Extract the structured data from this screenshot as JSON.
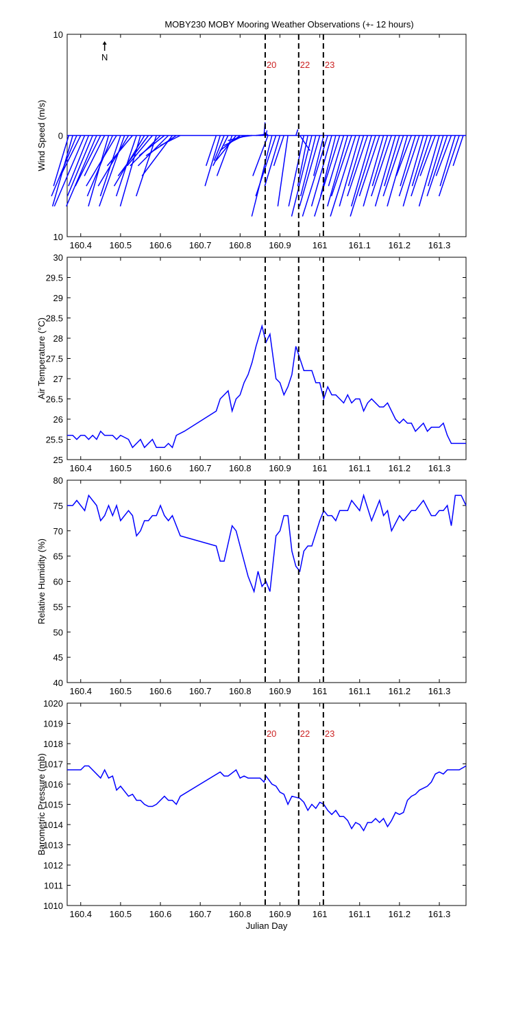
{
  "chart_data": [
    {
      "type": "feather",
      "title": "MOBY230 MOBY Mooring Weather Observations (+- 12 hours)",
      "ylabel": "Wind Speed (m/s)",
      "annotation": "N",
      "annotation_x": 160.46,
      "color": "#0000ff",
      "xlim": [
        160.366,
        161.367
      ],
      "xticks": [
        160.4,
        160.5,
        160.6,
        160.7,
        160.8,
        160.9,
        161,
        161.1,
        161.2,
        161.3
      ],
      "ylim": [
        -10,
        10
      ],
      "yticks": [
        {
          "value": -10,
          "label": "10"
        },
        0,
        10
      ],
      "vlines": [
        160.863,
        160.947,
        161.009
      ],
      "vline_labels": [
        "20",
        "22",
        "23"
      ],
      "vline_color": "#000000",
      "vline_label_color": "#cc2222",
      "x": [
        160.37,
        160.38,
        160.39,
        160.4,
        160.41,
        160.42,
        160.43,
        160.44,
        160.45,
        160.46,
        160.47,
        160.48,
        160.49,
        160.5,
        160.51,
        160.52,
        160.53,
        160.54,
        160.55,
        160.56,
        160.57,
        160.58,
        160.59,
        160.6,
        160.61,
        160.62,
        160.63,
        160.64,
        160.65,
        160.74,
        160.75,
        160.76,
        160.77,
        160.78,
        160.79,
        160.8,
        160.81,
        160.82,
        160.83,
        160.84,
        160.85,
        160.86,
        160.865,
        160.87,
        160.88,
        160.89,
        160.9,
        160.91,
        160.92,
        160.94,
        160.95,
        160.96,
        160.97,
        160.98,
        160.99,
        161.0,
        161.01,
        161.02,
        161.03,
        161.04,
        161.05,
        161.06,
        161.07,
        161.08,
        161.09,
        161.1,
        161.11,
        161.12,
        161.13,
        161.14,
        161.15,
        161.16,
        161.17,
        161.18,
        161.19,
        161.2,
        161.21,
        161.22,
        161.23,
        161.24,
        161.25,
        161.26,
        161.27,
        161.28,
        161.29,
        161.3,
        161.31,
        161.32,
        161.33,
        161.34,
        161.35,
        161.36
      ],
      "u": [
        -1.5,
        -2,
        -2.5,
        -2,
        -3,
        -2,
        -2.5,
        -3,
        -2.5,
        -2,
        -2,
        -2.5,
        -3,
        -2,
        -2.5,
        -3,
        -2.5,
        -2,
        -2,
        -3,
        -3,
        -2.5,
        -2,
        -3,
        -2.5,
        -3,
        -3,
        -3,
        -2,
        -1,
        -1.5,
        -1,
        -1.5,
        -1.5,
        -2,
        -2,
        -2,
        -2,
        -1.5,
        0.8,
        0.8,
        0.1,
        0.1,
        -1.5,
        -2,
        -2,
        -1.5,
        -1,
        -1,
        0.2,
        1,
        -1.5,
        -1,
        -2,
        -1.5,
        -2,
        -1,
        -2.5,
        -2,
        -1.5,
        -2.5,
        -1.5,
        -2,
        -2,
        -2.5,
        -2,
        -1.5,
        -2,
        -2,
        -2.5,
        -2,
        -2,
        -1.5,
        -2,
        -2,
        -1.5,
        -2,
        -2,
        -1.5,
        -1.5,
        -2,
        -2,
        -1.5,
        -2,
        -1.5,
        -2,
        -1.5,
        -2,
        -1.5,
        -1.5,
        -2,
        -1
      ],
      "v": [
        -5,
        -7,
        -6,
        -4,
        -7,
        -5,
        -6,
        -7,
        -5,
        -4,
        -7,
        -6,
        -5,
        -6,
        -7,
        -5,
        -3,
        -6,
        -7,
        -5,
        -4,
        -3,
        -6,
        -3,
        -2,
        -3,
        -4,
        -2,
        -1,
        -3,
        -5,
        -2.5,
        -3,
        -4,
        -2.5,
        -1.5,
        -1,
        -0.5,
        -0.2,
        0.1,
        0.1,
        1.3,
        0.5,
        -4,
        -8,
        -6,
        -5,
        -3,
        -7,
        0.6,
        -1.5,
        -7,
        -5,
        -8,
        -6,
        -7,
        -4,
        -8,
        -7,
        -6,
        -8,
        -5,
        -7,
        -6,
        -8,
        -7,
        -5,
        -6,
        -7,
        -8,
        -6,
        -7,
        -5,
        -6,
        -7,
        -5,
        -6,
        -7,
        -4,
        -5,
        -6,
        -7,
        -5,
        -6,
        -4,
        -7,
        -5,
        -6,
        -4,
        -5,
        -6,
        -3
      ]
    },
    {
      "type": "line",
      "ylabel": "Air Temperature (°C)",
      "color": "#0000ff",
      "xlim": [
        160.366,
        161.367
      ],
      "xticks": [
        160.4,
        160.5,
        160.6,
        160.7,
        160.8,
        160.9,
        161,
        161.1,
        161.2,
        161.3
      ],
      "ylim": [
        25,
        30
      ],
      "yticks": [
        25,
        25.5,
        26,
        26.5,
        27,
        27.5,
        28,
        28.5,
        29,
        29.5,
        30
      ],
      "vlines": [
        160.863,
        160.947,
        161.009
      ],
      "vline_color": "#000000",
      "x": [
        160.366,
        160.38,
        160.39,
        160.4,
        160.41,
        160.42,
        160.43,
        160.44,
        160.45,
        160.46,
        160.47,
        160.48,
        160.49,
        160.5,
        160.51,
        160.52,
        160.53,
        160.55,
        160.56,
        160.58,
        160.59,
        160.61,
        160.62,
        160.63,
        160.64,
        160.66,
        160.74,
        160.75,
        160.77,
        160.78,
        160.79,
        160.8,
        160.81,
        160.82,
        160.83,
        160.84,
        160.855,
        160.865,
        160.875,
        160.89,
        160.9,
        160.91,
        160.92,
        160.93,
        160.94,
        160.96,
        160.98,
        160.99,
        161.0,
        161.01,
        161.02,
        161.03,
        161.04,
        161.06,
        161.07,
        161.08,
        161.09,
        161.1,
        161.11,
        161.12,
        161.13,
        161.15,
        161.16,
        161.17,
        161.18,
        161.19,
        161.2,
        161.21,
        161.22,
        161.23,
        161.24,
        161.26,
        161.27,
        161.28,
        161.3,
        161.31,
        161.32,
        161.33,
        161.367
      ],
      "values": [
        25.6,
        25.6,
        25.5,
        25.6,
        25.6,
        25.5,
        25.6,
        25.5,
        25.7,
        25.6,
        25.6,
        25.6,
        25.5,
        25.6,
        25.55,
        25.5,
        25.3,
        25.5,
        25.3,
        25.5,
        25.3,
        25.3,
        25.4,
        25.3,
        25.6,
        25.7,
        26.2,
        26.5,
        26.7,
        26.2,
        26.5,
        26.6,
        26.9,
        27.1,
        27.4,
        27.8,
        28.3,
        27.9,
        28.1,
        27.0,
        26.9,
        26.6,
        26.8,
        27.1,
        27.8,
        27.2,
        27.2,
        26.9,
        26.9,
        26.5,
        26.8,
        26.6,
        26.6,
        26.4,
        26.6,
        26.4,
        26.5,
        26.5,
        26.2,
        26.4,
        26.5,
        26.3,
        26.3,
        26.4,
        26.2,
        26.0,
        25.9,
        26.0,
        25.9,
        25.9,
        25.7,
        25.9,
        25.7,
        25.8,
        25.8,
        25.9,
        25.6,
        25.4,
        25.4
      ]
    },
    {
      "type": "line",
      "ylabel": "Relative Humidity (%)",
      "color": "#0000ff",
      "xlim": [
        160.366,
        161.367
      ],
      "xticks": [
        160.4,
        160.5,
        160.6,
        160.7,
        160.8,
        160.9,
        161,
        161.1,
        161.2,
        161.3
      ],
      "ylim": [
        40,
        80
      ],
      "yticks": [
        40,
        45,
        50,
        55,
        60,
        65,
        70,
        75,
        80
      ],
      "vlines": [
        160.863,
        160.947,
        161.009
      ],
      "vline_color": "#000000",
      "x": [
        160.366,
        160.38,
        160.39,
        160.41,
        160.42,
        160.44,
        160.45,
        160.46,
        160.47,
        160.48,
        160.49,
        160.5,
        160.52,
        160.53,
        160.54,
        160.55,
        160.56,
        160.57,
        160.58,
        160.59,
        160.6,
        160.61,
        160.62,
        160.63,
        160.65,
        160.74,
        160.75,
        160.76,
        160.78,
        160.79,
        160.8,
        160.82,
        160.835,
        160.845,
        160.855,
        160.865,
        160.875,
        160.89,
        160.9,
        160.91,
        160.92,
        160.93,
        160.94,
        160.95,
        160.96,
        160.97,
        160.98,
        161.0,
        161.01,
        161.02,
        161.03,
        161.04,
        161.05,
        161.07,
        161.08,
        161.1,
        161.11,
        161.13,
        161.15,
        161.16,
        161.17,
        161.18,
        161.2,
        161.21,
        161.23,
        161.24,
        161.26,
        161.28,
        161.29,
        161.3,
        161.31,
        161.32,
        161.33,
        161.34,
        161.355,
        161.367
      ],
      "values": [
        75,
        75,
        76,
        74,
        77,
        75,
        72,
        73,
        75,
        73,
        75,
        72,
        74,
        73,
        69,
        70,
        72,
        72,
        73,
        73,
        75,
        73,
        72,
        73,
        69,
        67,
        64,
        64,
        71,
        70,
        67,
        61,
        58,
        62,
        59,
        60,
        58,
        69,
        70,
        73,
        73,
        66,
        63,
        62,
        66,
        67,
        67,
        72,
        74,
        73,
        73,
        72,
        74,
        74,
        76,
        74,
        77,
        72,
        76,
        73,
        74,
        70,
        73,
        72,
        74,
        74,
        76,
        73,
        73,
        74,
        74,
        75,
        71,
        77,
        77,
        75
      ]
    },
    {
      "type": "line",
      "ylabel": "Barometric Pressure (mb)",
      "xlabel": "Julian Day",
      "color": "#0000ff",
      "xlim": [
        160.366,
        161.367
      ],
      "xticks": [
        160.4,
        160.5,
        160.6,
        160.7,
        160.8,
        160.9,
        161,
        161.1,
        161.2,
        161.3
      ],
      "ylim": [
        1010,
        1020
      ],
      "yticks": [
        1010,
        1011,
        1012,
        1013,
        1014,
        1015,
        1016,
        1017,
        1018,
        1019,
        1020
      ],
      "vlines": [
        160.863,
        160.947,
        161.009
      ],
      "vline_labels": [
        "20",
        "22",
        "23"
      ],
      "vline_color": "#000000",
      "vline_label_color": "#cc2222",
      "x": [
        160.366,
        160.4,
        160.41,
        160.42,
        160.45,
        160.46,
        160.47,
        160.48,
        160.49,
        160.5,
        160.52,
        160.53,
        160.54,
        160.55,
        160.56,
        160.57,
        160.58,
        160.59,
        160.61,
        160.62,
        160.63,
        160.64,
        160.65,
        160.75,
        160.76,
        160.77,
        160.79,
        160.8,
        160.81,
        160.82,
        160.85,
        160.86,
        160.865,
        160.88,
        160.89,
        160.9,
        160.91,
        160.92,
        160.93,
        160.95,
        160.96,
        160.97,
        160.98,
        160.99,
        161.0,
        161.01,
        161.02,
        161.03,
        161.04,
        161.05,
        161.06,
        161.07,
        161.08,
        161.09,
        161.1,
        161.11,
        161.12,
        161.13,
        161.14,
        161.15,
        161.16,
        161.17,
        161.18,
        161.19,
        161.2,
        161.21,
        161.22,
        161.23,
        161.24,
        161.25,
        161.26,
        161.27,
        161.28,
        161.29,
        161.3,
        161.31,
        161.32,
        161.34,
        161.35,
        161.367
      ],
      "values": [
        1016.7,
        1016.7,
        1016.9,
        1016.9,
        1016.3,
        1016.7,
        1016.3,
        1016.4,
        1015.7,
        1015.9,
        1015.4,
        1015.5,
        1015.2,
        1015.2,
        1015.0,
        1014.9,
        1014.9,
        1015.0,
        1015.4,
        1015.2,
        1015.2,
        1015.0,
        1015.4,
        1016.6,
        1016.4,
        1016.4,
        1016.7,
        1016.3,
        1016.4,
        1016.3,
        1016.3,
        1016.1,
        1016.4,
        1016.0,
        1015.9,
        1015.6,
        1015.5,
        1015.0,
        1015.4,
        1015.3,
        1015.1,
        1014.7,
        1015.0,
        1014.8,
        1015.1,
        1015.0,
        1014.7,
        1014.5,
        1014.7,
        1014.4,
        1014.4,
        1014.2,
        1013.8,
        1014.1,
        1014.0,
        1013.7,
        1014.1,
        1014.1,
        1014.3,
        1014.1,
        1014.3,
        1013.9,
        1014.2,
        1014.6,
        1014.5,
        1014.6,
        1015.2,
        1015.4,
        1015.5,
        1015.7,
        1015.8,
        1015.9,
        1016.1,
        1016.5,
        1016.6,
        1016.5,
        1016.7,
        1016.7,
        1016.7,
        1016.9
      ]
    }
  ]
}
